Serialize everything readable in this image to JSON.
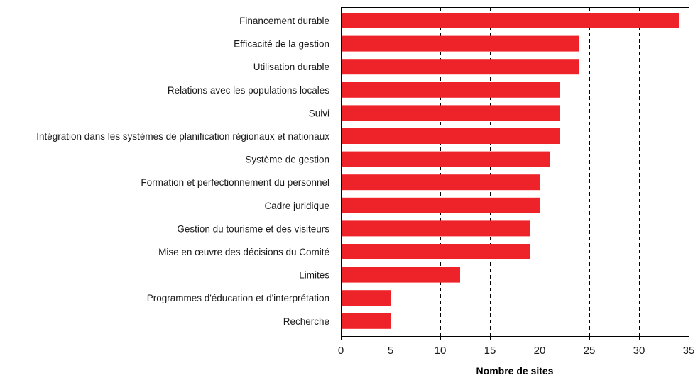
{
  "chart_data": {
    "type": "bar",
    "orientation": "horizontal",
    "categories": [
      "Financement durable",
      "Efficacité de la gestion",
      "Utilisation durable",
      "Relations avec les populations locales",
      "Suivi",
      "Intégration dans les systèmes de planification régionaux et nationaux",
      "Système de gestion",
      "Formation et perfectionnement du personnel",
      "Cadre juridique",
      "Gestion du tourisme et des visiteurs",
      "Mise en œuvre des décisions du Comité",
      "Limites",
      "Programmes d'éducation et d'interprétation",
      "Recherche"
    ],
    "values": [
      34,
      24,
      24,
      22,
      22,
      22,
      21,
      20,
      20,
      19,
      19,
      12,
      5,
      5
    ],
    "xlabel": "Nombre de sites",
    "ylabel": "",
    "xlim": [
      0,
      35
    ],
    "xticks": [
      "0",
      "5",
      "10",
      "15",
      "20",
      "25",
      "30",
      "35"
    ],
    "grid": "vertical dashed",
    "bar_color": "#ee2229"
  }
}
